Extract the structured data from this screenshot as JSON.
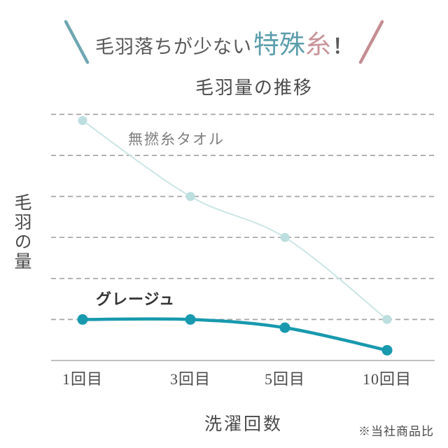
{
  "header": {
    "prefix": "毛羽落ちが少ない",
    "highlight_1": "特殊",
    "highlight_2": "糸",
    "exclamation": "！"
  },
  "chart": {
    "title": "毛羽量の推移",
    "y_axis_label": "毛羽の量",
    "x_axis_label": "洗濯回数",
    "footnote": "※当社商品比"
  },
  "colors": {
    "dark_text": "#595959",
    "accent_teal_text": "#5B9EAB",
    "accent_pink_text": "#C8959A",
    "slash_teal": "#6FA6B1",
    "slash_pink": "#C48E92",
    "line_teal": "#1899AE",
    "line_light": "#CBE5E5",
    "point_light": "#BCDEDF",
    "gridline": "#A5A5A5",
    "axis": "#ABABAB",
    "label_gray": "#7F7F7F",
    "label_dark": "#333333"
  },
  "chart_data": {
    "type": "line",
    "title": "毛羽量の推移",
    "xlabel": "洗濯回数",
    "ylabel": "毛羽の量",
    "categories": [
      "1回目",
      "3回目",
      "5回目",
      "10回目"
    ],
    "series": [
      {
        "name": "無撚糸タオル",
        "values": [
          5.85,
          4.0,
          3.0,
          1.0
        ],
        "color": "#CBE5E5",
        "point_color": "#BCDEDF",
        "line_width": 2,
        "point_radius": 6.5
      },
      {
        "name": "グレージュ",
        "values": [
          1.0,
          1.0,
          0.8,
          0.25
        ],
        "color": "#1899AE",
        "point_color": "#1899AE",
        "line_width": 4.5,
        "point_radius": 7.5
      }
    ],
    "y_axis": {
      "unlabeled": true,
      "unit": "relative fluff amount (gridline units)",
      "gridlines_at": [
        1,
        2,
        3,
        4,
        5,
        6
      ],
      "ylim": [
        0,
        6.5
      ]
    },
    "grid": "horizontal dashed",
    "legend": "inline labels beside each line",
    "note": "※当社商品比"
  }
}
